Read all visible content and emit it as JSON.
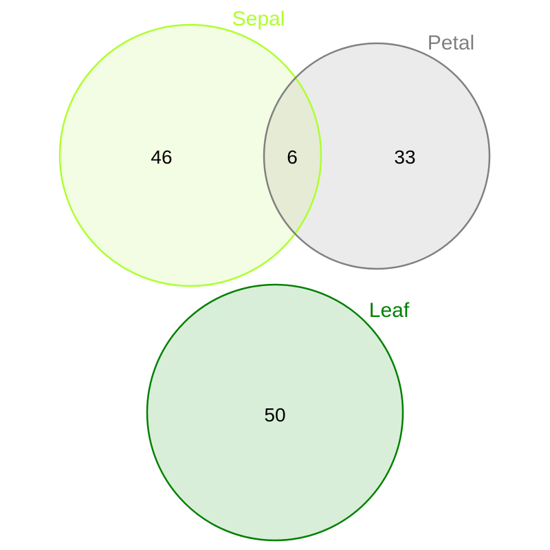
{
  "sets": [
    {
      "key": "sepal",
      "name": "Sepal",
      "stroke": "#adff2f",
      "fill": "#f3fde3"
    },
    {
      "key": "petal",
      "name": "Petal",
      "stroke": "#808080",
      "fill": "#ebebeb"
    },
    {
      "key": "leaf",
      "name": "Leaf",
      "stroke": "#008000",
      "fill": "#d9eed9"
    }
  ],
  "overlap_fill": "#e5ebd5",
  "regions": [
    {
      "key": "sepal_only",
      "sets": [
        "Sepal"
      ],
      "count": "46"
    },
    {
      "key": "sepal_petal",
      "sets": [
        "Sepal",
        "Petal"
      ],
      "count": "6"
    },
    {
      "key": "petal_only",
      "sets": [
        "Petal"
      ],
      "count": "33"
    },
    {
      "key": "leaf_only",
      "sets": [
        "Leaf"
      ],
      "count": "50"
    }
  ]
}
